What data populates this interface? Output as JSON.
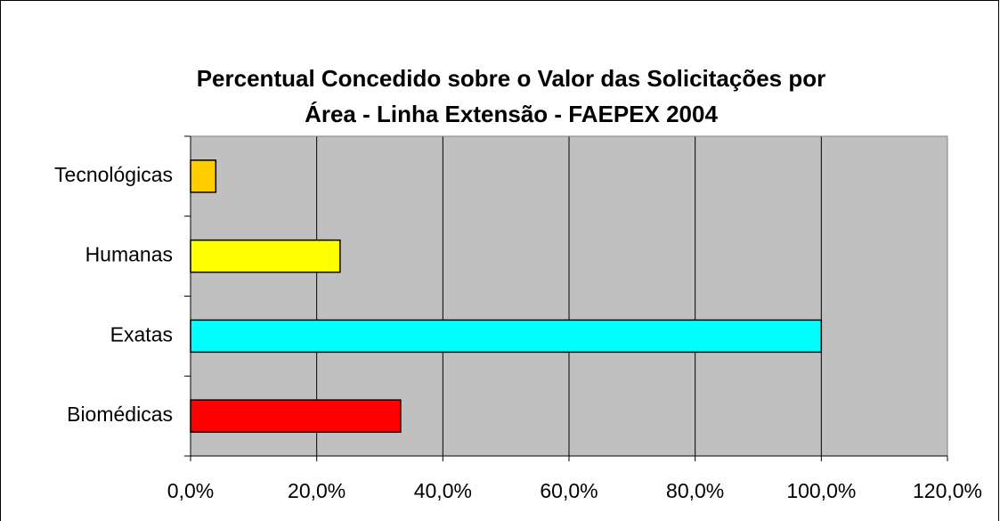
{
  "chart_data": {
    "type": "bar",
    "orientation": "horizontal",
    "title": [
      "Percentual Concedido sobre o Valor das Solicitações por",
      "Área - Linha Extensão - FAEPEX 2004"
    ],
    "categories": [
      "Biomédicas",
      "Exatas",
      "Humanas",
      "Tecnológicas"
    ],
    "values": [
      33.3,
      100,
      23.7,
      4
    ],
    "colors": [
      "#ff0000",
      "#00ffff",
      "#ffff00",
      "#ffcc00"
    ],
    "xlim": [
      0,
      120
    ],
    "xticks": [
      {
        "value": 0,
        "label": "0,0%"
      },
      {
        "value": 20,
        "label": "20,0%"
      },
      {
        "value": 40,
        "label": "40,0%"
      },
      {
        "value": 60,
        "label": "60,0%"
      },
      {
        "value": 80,
        "label": "80,0%"
      },
      {
        "value": 100,
        "label": "100,0%"
      },
      {
        "value": 120,
        "label": "120,0%"
      }
    ],
    "grid": true
  }
}
